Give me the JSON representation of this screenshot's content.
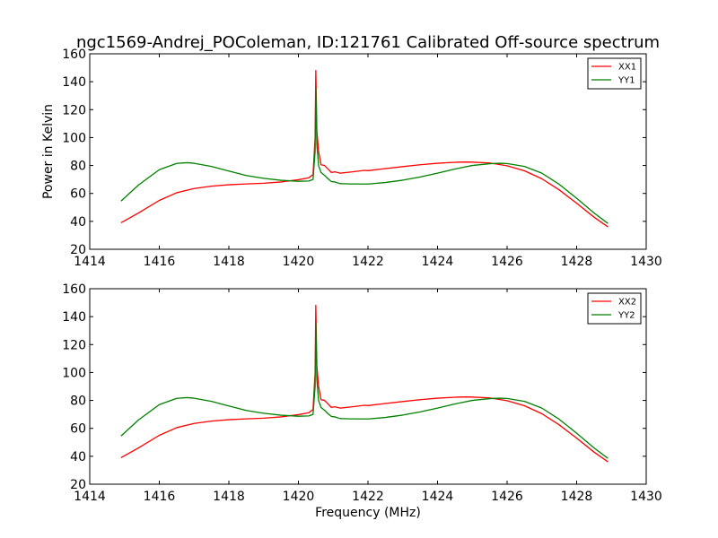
{
  "chart_data": [
    {
      "type": "line",
      "title": "ngc1569-Andrej_POColeman, ID:121761 Calibrated Off-source spectrum",
      "xlabel": "",
      "ylabel": "Power in Kelvin",
      "xlim": [
        1414,
        1430
      ],
      "ylim": [
        20,
        160
      ],
      "xticks": [
        1414,
        1416,
        1418,
        1420,
        1422,
        1424,
        1426,
        1428,
        1430
      ],
      "yticks": [
        20,
        40,
        60,
        80,
        100,
        120,
        140,
        160
      ],
      "legend": "top-right",
      "grid": false,
      "series": [
        {
          "name": "XX1",
          "color": "#ff0000",
          "x": [
            1414.9,
            1415.4,
            1416.0,
            1416.5,
            1417.0,
            1417.5,
            1418.0,
            1418.5,
            1419.0,
            1419.5,
            1420.0,
            1420.3,
            1420.42,
            1420.48,
            1420.5,
            1420.53,
            1420.58,
            1420.65,
            1420.75,
            1420.85,
            1420.95,
            1421.05,
            1421.2,
            1421.5,
            1421.9,
            1422.0,
            1422.5,
            1423.0,
            1423.5,
            1424.0,
            1424.5,
            1424.8,
            1425.0,
            1425.5,
            1426.0,
            1426.5,
            1427.0,
            1427.5,
            1428.0,
            1428.5,
            1428.9
          ],
          "values": [
            39.0,
            46.0,
            55.0,
            60.5,
            63.5,
            65.2,
            66.2,
            66.8,
            67.3,
            68.2,
            69.8,
            71.2,
            73.5,
            100.0,
            148.0,
            105.0,
            90.0,
            80.5,
            80.0,
            77.5,
            75.0,
            75.5,
            74.5,
            75.3,
            76.5,
            76.3,
            77.8,
            79.2,
            80.5,
            81.6,
            82.3,
            82.5,
            82.4,
            81.8,
            79.8,
            76.2,
            70.5,
            62.5,
            53.0,
            43.0,
            36.0
          ]
        },
        {
          "name": "YY1",
          "color": "#008000",
          "x": [
            1414.9,
            1415.4,
            1416.0,
            1416.5,
            1416.8,
            1417.0,
            1417.5,
            1418.0,
            1418.5,
            1419.0,
            1419.5,
            1420.0,
            1420.3,
            1420.42,
            1420.48,
            1420.5,
            1420.53,
            1420.58,
            1420.65,
            1420.75,
            1420.85,
            1420.95,
            1421.05,
            1421.2,
            1421.5,
            1422.0,
            1422.5,
            1423.0,
            1423.5,
            1424.0,
            1424.5,
            1425.0,
            1425.5,
            1425.8,
            1426.0,
            1426.5,
            1427.0,
            1427.5,
            1428.0,
            1428.5,
            1428.9
          ],
          "values": [
            54.5,
            66.0,
            77.0,
            81.5,
            82.0,
            81.6,
            79.3,
            76.0,
            72.8,
            70.8,
            69.4,
            68.7,
            68.9,
            70.0,
            90.0,
            135.0,
            95.0,
            80.0,
            75.0,
            73.0,
            70.5,
            68.5,
            68.2,
            67.0,
            66.8,
            66.7,
            67.8,
            69.5,
            71.8,
            74.5,
            77.5,
            80.0,
            81.3,
            81.6,
            81.4,
            79.3,
            74.5,
            66.5,
            56.5,
            46.0,
            38.5
          ]
        }
      ]
    },
    {
      "type": "line",
      "title": "",
      "xlabel": "Frequency (MHz)",
      "ylabel": "",
      "xlim": [
        1414,
        1430
      ],
      "ylim": [
        20,
        160
      ],
      "xticks": [
        1414,
        1416,
        1418,
        1420,
        1422,
        1424,
        1426,
        1428,
        1430
      ],
      "yticks": [
        20,
        40,
        60,
        80,
        100,
        120,
        140,
        160
      ],
      "legend": "top-right",
      "grid": false,
      "series": [
        {
          "name": "XX2",
          "color": "#ff0000",
          "x": [
            1414.9,
            1415.4,
            1416.0,
            1416.5,
            1417.0,
            1417.5,
            1418.0,
            1418.5,
            1419.0,
            1419.5,
            1420.0,
            1420.3,
            1420.42,
            1420.48,
            1420.5,
            1420.53,
            1420.58,
            1420.65,
            1420.75,
            1420.85,
            1420.95,
            1421.05,
            1421.2,
            1421.5,
            1421.9,
            1422.0,
            1422.5,
            1423.0,
            1423.5,
            1424.0,
            1424.5,
            1424.8,
            1425.0,
            1425.5,
            1426.0,
            1426.5,
            1427.0,
            1427.5,
            1428.0,
            1428.5,
            1428.9
          ],
          "values": [
            39.0,
            46.0,
            55.0,
            60.5,
            63.5,
            65.2,
            66.2,
            66.8,
            67.3,
            68.2,
            69.8,
            71.2,
            73.5,
            100.0,
            148.0,
            105.0,
            90.0,
            80.5,
            80.0,
            77.5,
            75.0,
            75.5,
            74.5,
            75.3,
            76.5,
            76.3,
            77.8,
            79.2,
            80.5,
            81.6,
            82.3,
            82.5,
            82.4,
            81.8,
            79.8,
            76.2,
            70.5,
            62.5,
            53.0,
            43.0,
            36.0
          ]
        },
        {
          "name": "YY2",
          "color": "#008000",
          "x": [
            1414.9,
            1415.4,
            1416.0,
            1416.5,
            1416.8,
            1417.0,
            1417.5,
            1418.0,
            1418.5,
            1419.0,
            1419.5,
            1420.0,
            1420.3,
            1420.42,
            1420.48,
            1420.5,
            1420.53,
            1420.58,
            1420.65,
            1420.75,
            1420.85,
            1420.95,
            1421.05,
            1421.2,
            1421.5,
            1422.0,
            1422.5,
            1423.0,
            1423.5,
            1424.0,
            1424.5,
            1425.0,
            1425.5,
            1425.8,
            1426.0,
            1426.5,
            1427.0,
            1427.5,
            1428.0,
            1428.5,
            1428.9
          ],
          "values": [
            54.5,
            66.0,
            77.0,
            81.5,
            82.0,
            81.6,
            79.3,
            76.0,
            72.8,
            70.8,
            69.4,
            68.7,
            68.9,
            70.0,
            90.0,
            135.0,
            95.0,
            80.0,
            75.0,
            73.0,
            70.5,
            68.5,
            68.2,
            67.0,
            66.8,
            66.7,
            67.8,
            69.5,
            71.8,
            74.5,
            77.5,
            80.0,
            81.3,
            81.6,
            81.4,
            79.3,
            74.5,
            66.5,
            56.5,
            46.0,
            38.5
          ]
        }
      ]
    }
  ]
}
